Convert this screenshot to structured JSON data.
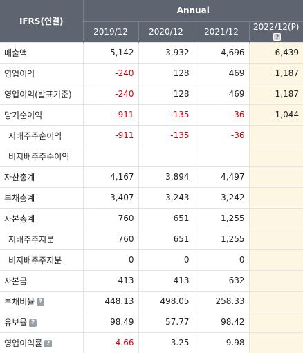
{
  "header": {
    "corner": "IFRS(연결)",
    "group": "Annual",
    "years": [
      "2019/12",
      "2020/12",
      "2021/12",
      "2022/12(P)"
    ]
  },
  "rows": [
    {
      "label": "매출액",
      "indent": false,
      "help": false,
      "values": [
        "5,142",
        "3,932",
        "4,696",
        "6,439"
      ]
    },
    {
      "label": "영업이익",
      "indent": false,
      "help": false,
      "values": [
        "-240",
        "128",
        "469",
        "1,187"
      ]
    },
    {
      "label": "영업이익(발표기준)",
      "indent": false,
      "help": false,
      "values": [
        "-240",
        "128",
        "469",
        "1,187"
      ]
    },
    {
      "label": "당기순이익",
      "indent": false,
      "help": false,
      "values": [
        "-911",
        "-135",
        "-36",
        "1,044"
      ]
    },
    {
      "label": "지배주주순이익",
      "indent": true,
      "help": false,
      "values": [
        "-911",
        "-135",
        "-36",
        ""
      ]
    },
    {
      "label": "비지배주주순이익",
      "indent": true,
      "help": false,
      "values": [
        "",
        "",
        "",
        ""
      ]
    },
    {
      "label": "자산총계",
      "indent": false,
      "help": false,
      "values": [
        "4,167",
        "3,894",
        "4,497",
        ""
      ]
    },
    {
      "label": "부채총계",
      "indent": false,
      "help": false,
      "values": [
        "3,407",
        "3,243",
        "3,242",
        ""
      ]
    },
    {
      "label": "자본총계",
      "indent": false,
      "help": false,
      "values": [
        "760",
        "651",
        "1,255",
        ""
      ]
    },
    {
      "label": "지배주주지분",
      "indent": true,
      "help": false,
      "values": [
        "760",
        "651",
        "1,255",
        ""
      ]
    },
    {
      "label": "비지배주주지분",
      "indent": true,
      "help": false,
      "values": [
        "0",
        "0",
        "0",
        ""
      ]
    },
    {
      "label": "자본금",
      "indent": false,
      "help": false,
      "values": [
        "413",
        "413",
        "632",
        ""
      ]
    },
    {
      "label": "부채비율",
      "indent": false,
      "help": true,
      "values": [
        "448.13",
        "498.05",
        "258.33",
        ""
      ]
    },
    {
      "label": "유보율",
      "indent": false,
      "help": true,
      "values": [
        "98.49",
        "57.77",
        "98.42",
        ""
      ]
    },
    {
      "label": "영업이익률",
      "indent": false,
      "help": true,
      "values": [
        "-4.66",
        "3.25",
        "9.98",
        ""
      ]
    }
  ],
  "icons": {
    "help": "question-icon"
  },
  "colors": {
    "header_bg": "#5f6570",
    "negative": "#d6000c",
    "estimate_bg": "#fdf6e3"
  }
}
